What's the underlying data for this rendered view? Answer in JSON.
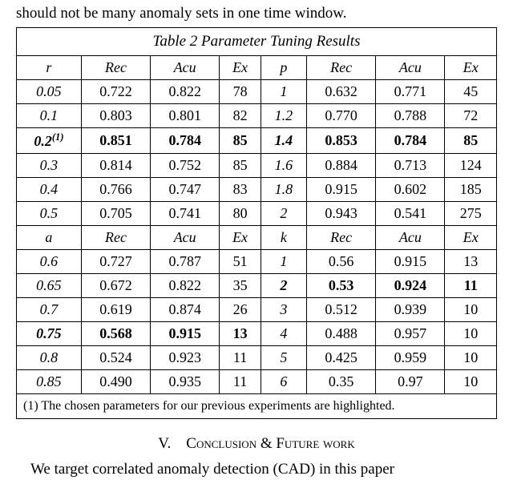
{
  "colors": {
    "background": "#ffffff",
    "text": "#000000",
    "border": "#000000"
  },
  "typography": {
    "body_family": "Times New Roman",
    "body_size_pt": 14,
    "table_size_pt": 13
  },
  "fragments": {
    "top": "should not be many anomaly sets in one time window.",
    "bottom": "We target correlated anomaly detection (CAD) in this paper"
  },
  "table": {
    "title": "Table 2 Parameter Tuning Results",
    "footnote": "(1) The chosen parameters for our previous experiments are highlighted.",
    "top_header": {
      "left_param": "r",
      "right_param": "p",
      "cols": [
        "Rec",
        "Acu",
        "Ex"
      ]
    },
    "top_rows": [
      {
        "l": "0.05",
        "rec1": "0.722",
        "acu1": "0.822",
        "ex1": "78",
        "r": "1",
        "rec2": "0.632",
        "acu2": "0.771",
        "ex2": "45",
        "bold": false
      },
      {
        "l": "0.1",
        "rec1": "0.803",
        "acu1": "0.801",
        "ex1": "82",
        "r": "1.2",
        "rec2": "0.770",
        "acu2": "0.788",
        "ex2": "72",
        "bold": false
      },
      {
        "l_html": "0.2<sup>(1)</sup>",
        "l": "0.2(1)",
        "rec1": "0.851",
        "acu1": "0.784",
        "ex1": "85",
        "r": "1.4",
        "rec2": "0.853",
        "acu2": "0.784",
        "ex2": "85",
        "bold": true
      },
      {
        "l": "0.3",
        "rec1": "0.814",
        "acu1": "0.752",
        "ex1": "85",
        "r": "1.6",
        "rec2": "0.884",
        "acu2": "0.713",
        "ex2": "124",
        "bold": false
      },
      {
        "l": "0.4",
        "rec1": "0.766",
        "acu1": "0.747",
        "ex1": "83",
        "r": "1.8",
        "rec2": "0.915",
        "acu2": "0.602",
        "ex2": "185",
        "bold": false
      },
      {
        "l": "0.5",
        "rec1": "0.705",
        "acu1": "0.741",
        "ex1": "80",
        "r": "2",
        "rec2": "0.943",
        "acu2": "0.541",
        "ex2": "275",
        "bold": false
      }
    ],
    "bottom_header": {
      "left_param": "a",
      "right_param": "k",
      "cols": [
        "Rec",
        "Acu",
        "Ex"
      ]
    },
    "bottom_rows": [
      {
        "l": "0.6",
        "rec1": "0.727",
        "acu1": "0.787",
        "ex1": "51",
        "r": "1",
        "rec2": "0.56",
        "acu2": "0.915",
        "ex2": "13",
        "boldL": false,
        "boldR": false
      },
      {
        "l": "0.65",
        "rec1": "0.672",
        "acu1": "0.822",
        "ex1": "35",
        "r": "2",
        "rec2": "0.53",
        "acu2": "0.924",
        "ex2": "11",
        "boldL": false,
        "boldR": true
      },
      {
        "l": "0.7",
        "rec1": "0.619",
        "acu1": "0.874",
        "ex1": "26",
        "r": "3",
        "rec2": "0.512",
        "acu2": "0.939",
        "ex2": "10",
        "boldL": false,
        "boldR": false
      },
      {
        "l": "0.75",
        "rec1": "0.568",
        "acu1": "0.915",
        "ex1": "13",
        "r": "4",
        "rec2": "0.488",
        "acu2": "0.957",
        "ex2": "10",
        "boldL": true,
        "boldR": false
      },
      {
        "l": "0.8",
        "rec1": "0.524",
        "acu1": "0.923",
        "ex1": "11",
        "r": "5",
        "rec2": "0.425",
        "acu2": "0.959",
        "ex2": "10",
        "boldL": false,
        "boldR": false
      },
      {
        "l": "0.85",
        "rec1": "0.490",
        "acu1": "0.935",
        "ex1": "11",
        "r": "6",
        "rec2": "0.35",
        "acu2": "0.97",
        "ex2": "10",
        "boldL": false,
        "boldR": false
      }
    ]
  },
  "section": {
    "number": "V.",
    "title": "Conclusion & Future work"
  }
}
